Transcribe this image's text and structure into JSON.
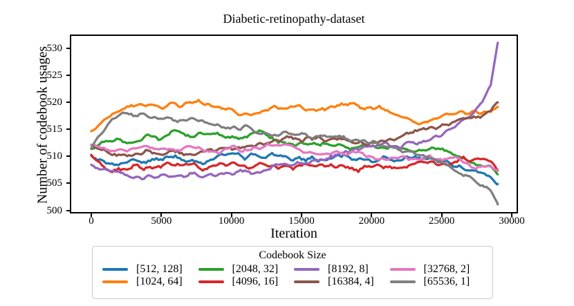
{
  "chart_data": {
    "type": "line",
    "title": "Diabetic-retinopathy-dataset",
    "xlabel": "Iteration",
    "ylabel": "Number of codebook usages",
    "legend_title": "Codebook Size",
    "legend_position": "below",
    "grid": false,
    "xlim": [
      -1430,
      30345
    ],
    "ylim": [
      499.7,
      532.25
    ],
    "x_ticks": [
      0,
      5000,
      10000,
      15000,
      20000,
      25000,
      30000
    ],
    "y_ticks": [
      500,
      505,
      510,
      515,
      520,
      525,
      530
    ],
    "x": [
      0,
      500,
      1000,
      1500,
      2000,
      2500,
      3000,
      3500,
      4000,
      5000,
      6000,
      7000,
      8000,
      9000,
      10000,
      11000,
      12000,
      13000,
      14000,
      15000,
      16000,
      17000,
      18000,
      19000,
      20000,
      21000,
      22000,
      23000,
      24000,
      25000,
      26000,
      26500,
      27000,
      27500,
      28000,
      28500,
      29000
    ],
    "series": [
      {
        "name": "[512, 128]",
        "color": "#1f77b4",
        "values": [
          509.9,
          509.4,
          509.0,
          508.8,
          508.9,
          508.7,
          509.2,
          508.9,
          509.1,
          509.3,
          509.7,
          509.4,
          509.2,
          509.9,
          510.3,
          509.9,
          510.4,
          510.1,
          509.7,
          509.4,
          509.2,
          509.7,
          510.1,
          509.5,
          509.2,
          509.7,
          509.3,
          509.9,
          509.5,
          509.0,
          508.3,
          507.9,
          507.5,
          507.1,
          506.5,
          506.2,
          505.0
        ]
      },
      {
        "name": "[1024, 64]",
        "color": "#ff7f0e",
        "values": [
          514.8,
          515.6,
          516.8,
          517.6,
          518.6,
          519.0,
          519.3,
          520.1,
          519.7,
          519.0,
          519.5,
          519.7,
          519.8,
          518.8,
          518.4,
          517.4,
          518.3,
          518.9,
          519.2,
          519.0,
          518.7,
          518.8,
          519.5,
          519.2,
          518.9,
          518.6,
          517.6,
          516.3,
          516.1,
          517.6,
          518.1,
          518.5,
          518.0,
          518.4,
          517.9,
          518.4,
          519.1
        ]
      },
      {
        "name": "[2048, 32]",
        "color": "#2ca02c",
        "values": [
          511.8,
          512.4,
          512.9,
          513.1,
          513.0,
          512.8,
          512.7,
          513.1,
          513.8,
          513.1,
          515.1,
          513.6,
          513.9,
          514.3,
          513.4,
          513.8,
          514.4,
          513.1,
          512.6,
          512.2,
          512.0,
          512.4,
          511.8,
          511.5,
          511.9,
          511.3,
          511.7,
          511.2,
          511.0,
          511.5,
          510.3,
          509.6,
          508.8,
          508.2,
          508.0,
          508.5,
          506.6
        ]
      },
      {
        "name": "[4096, 16]",
        "color": "#d62728",
        "values": [
          510.4,
          508.9,
          507.8,
          507.4,
          507.6,
          507.2,
          508.2,
          507.8,
          507.9,
          508.4,
          508.0,
          508.5,
          507.7,
          508.3,
          508.6,
          508.1,
          508.5,
          508.0,
          508.3,
          508.1,
          508.5,
          507.9,
          508.3,
          507.5,
          508.1,
          508.4,
          507.8,
          508.6,
          509.0,
          508.5,
          509.4,
          509.7,
          508.9,
          509.3,
          509.6,
          508.8,
          507.7
        ]
      },
      {
        "name": "[8192, 8]",
        "color": "#9467bd",
        "values": [
          508.5,
          508.0,
          507.8,
          507.4,
          507.1,
          506.8,
          506.4,
          506.1,
          506.3,
          506.7,
          505.9,
          506.6,
          506.1,
          506.5,
          507.1,
          507.4,
          507.1,
          507.9,
          508.4,
          508.7,
          509.3,
          509.8,
          510.6,
          511.2,
          511.7,
          512.3,
          511.9,
          512.5,
          512.9,
          514.0,
          515.6,
          516.5,
          517.5,
          518.9,
          520.6,
          523.2,
          530.9
        ]
      },
      {
        "name": "[16384, 4]",
        "color": "#8c564b",
        "values": [
          512.2,
          511.5,
          510.9,
          510.5,
          510.2,
          510.4,
          510.1,
          510.5,
          510.9,
          510.5,
          510.9,
          510.7,
          511.1,
          511.4,
          511.1,
          511.7,
          512.4,
          513.1,
          513.6,
          513.1,
          513.5,
          512.9,
          513.3,
          512.6,
          512.3,
          512.9,
          513.5,
          514.5,
          515.3,
          515.7,
          516.3,
          516.6,
          517.0,
          517.2,
          517.7,
          518.5,
          520.1
        ]
      },
      {
        "name": "[32768, 2]",
        "color": "#e377c2",
        "values": [
          511.7,
          511.4,
          511.2,
          510.9,
          511.1,
          511.3,
          511.5,
          511.9,
          511.8,
          511.3,
          511.1,
          511.6,
          511.2,
          510.9,
          511.4,
          511.1,
          511.7,
          512.1,
          511.6,
          511.1,
          510.6,
          510.3,
          510.7,
          510.9,
          510.1,
          509.7,
          510.0,
          509.5,
          509.8,
          509.3,
          509.6,
          509.1,
          508.3,
          507.9,
          508.3,
          507.9,
          507.3
        ]
      },
      {
        "name": "[65536, 1]",
        "color": "#7f7f7f",
        "values": [
          511.3,
          513.6,
          515.3,
          517.0,
          517.6,
          517.8,
          517.4,
          518.0,
          517.2,
          517.1,
          516.8,
          516.5,
          516.4,
          515.6,
          515.1,
          515.4,
          514.4,
          513.8,
          514.4,
          514.1,
          513.6,
          513.9,
          513.3,
          512.9,
          512.5,
          512.1,
          511.2,
          510.6,
          509.8,
          509.0,
          507.3,
          506.6,
          506.1,
          505.2,
          504.5,
          503.6,
          501.3
        ]
      }
    ]
  }
}
